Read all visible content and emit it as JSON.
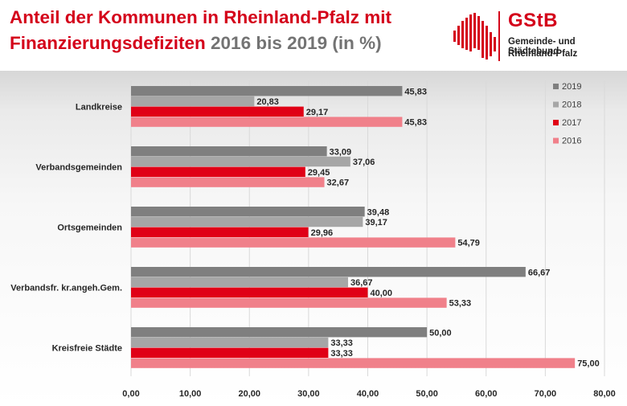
{
  "title": {
    "line1": "Anteil der Kommunen in Rheinland-Pfalz mit",
    "line2_red": "Finanzierungsdefiziten",
    "line2_grey": "2016 bis 2019 (in %)"
  },
  "logo": {
    "name": "GStB",
    "sub1": "Gemeinde- und Städtebund",
    "sub2": "Rheinland-Pfalz"
  },
  "colors": {
    "accent": "#d4001a",
    "s2019": "#7f7f7f",
    "s2018": "#a6a6a6",
    "s2017": "#e00016",
    "s2016": "#f0808a",
    "grid": "#d9d9d9"
  },
  "chart_data": {
    "type": "bar",
    "orientation": "horizontal",
    "categories": [
      "Landkreise",
      "Verbandsgemeinden",
      "Ortsgemeinden",
      "Verbandsfr. kr.angeh.Gem.",
      "Kreisfreie Städte"
    ],
    "series": [
      {
        "name": "2019",
        "values": [
          45.83,
          33.09,
          39.48,
          66.67,
          50.0
        ],
        "labels": [
          "45,83",
          "33,09",
          "39,48",
          "66,67",
          "50,00"
        ]
      },
      {
        "name": "2018",
        "values": [
          20.83,
          37.06,
          39.17,
          36.67,
          33.33
        ],
        "labels": [
          "20,83",
          "37,06",
          "39,17",
          "36,67",
          "33,33"
        ]
      },
      {
        "name": "2017",
        "values": [
          29.17,
          29.45,
          29.96,
          40.0,
          33.33
        ],
        "labels": [
          "29,17",
          "29,45",
          "29,96",
          "40,00",
          "33,33"
        ]
      },
      {
        "name": "2016",
        "values": [
          45.83,
          32.67,
          54.79,
          53.33,
          75.0
        ],
        "labels": [
          "45,83",
          "32,67",
          "54,79",
          "53,33",
          "75,00"
        ]
      }
    ],
    "xlim": [
      0,
      80
    ],
    "xticks": [
      0,
      10,
      20,
      30,
      40,
      50,
      60,
      70,
      80
    ],
    "xtick_labels": [
      "0,00",
      "10,00",
      "20,00",
      "30,00",
      "40,00",
      "50,00",
      "60,00",
      "70,00",
      "80,00"
    ],
    "grid": true,
    "legend_position": "right"
  }
}
